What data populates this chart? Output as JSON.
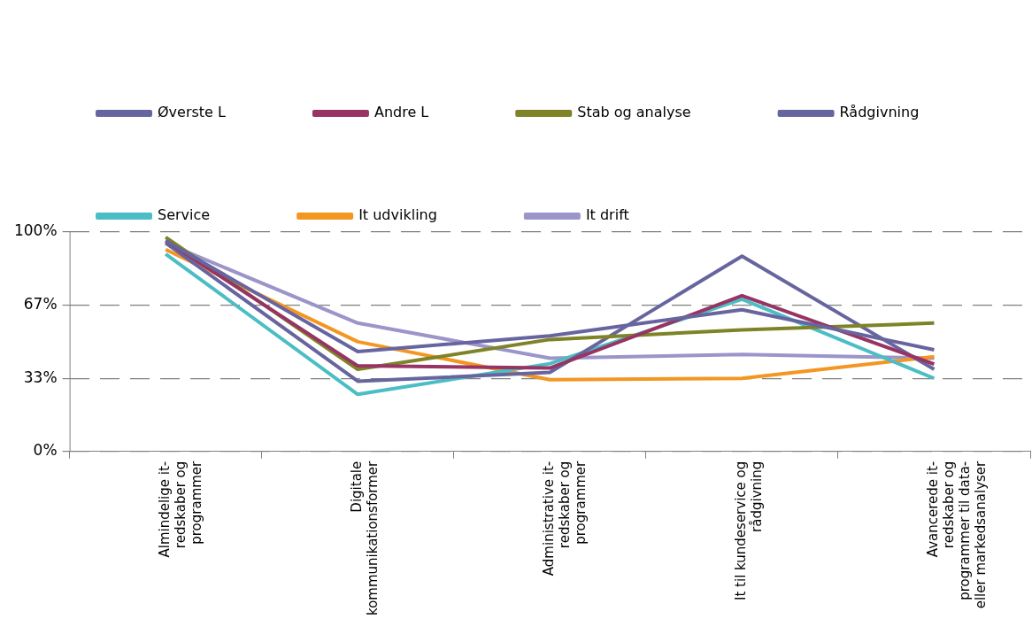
{
  "chart_data": {
    "type": "line",
    "categories": [
      "Almindelige it-redskaber og programmer",
      "Digitale kommunikationsformer",
      "Administrative it-redskaber og programmer",
      "It til kundeservice og rådgivning",
      "Avancerede it-redskaber og programmer til data- eller markedsanalyser"
    ],
    "series": [
      {
        "name": "Øverste L",
        "color": "#67659f",
        "values": [
          96,
          45.5,
          52.7,
          64.6,
          46.3
        ]
      },
      {
        "name": "Andre L",
        "color": "#973464",
        "values": [
          96,
          39,
          38,
          71,
          39.8
        ]
      },
      {
        "name": "Stab og analyse",
        "color": "#7f8327",
        "values": [
          97.6,
          37.4,
          51,
          55.4,
          58.5
        ]
      },
      {
        "name": "Rådgivning",
        "color": "#67659f",
        "values": [
          95,
          32,
          36,
          89,
          37.4
        ]
      },
      {
        "name": "Service",
        "color": "#4bbdc4",
        "values": [
          90,
          26,
          40,
          69.4,
          33.3
        ]
      },
      {
        "name": "It udvikling",
        "color": "#f39622",
        "values": [
          92,
          50,
          32.7,
          33.3,
          43.2
        ]
      },
      {
        "name": "It drift",
        "color": "#9b95c9",
        "values": [
          95,
          58.5,
          42.5,
          44.2,
          42.5
        ]
      }
    ],
    "ylim": [
      0,
      100
    ],
    "yticks": [
      {
        "value": 0,
        "label": "0%"
      },
      {
        "value": 33.33,
        "label": "33%"
      },
      {
        "value": 66.67,
        "label": "67%"
      },
      {
        "value": 100,
        "label": "100%"
      }
    ],
    "grid": "y",
    "legend": "top",
    "marker": "none",
    "line_style": "solid"
  }
}
